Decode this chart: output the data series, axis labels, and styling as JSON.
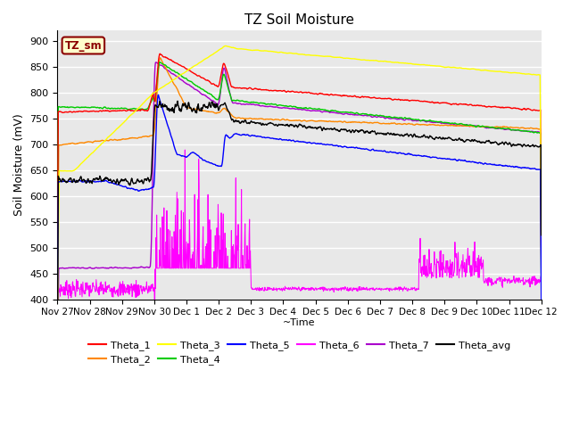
{
  "title": "TZ Soil Moisture",
  "xlabel": "~Time",
  "ylabel": "Soil Moisture (mV)",
  "ylim": [
    400,
    920
  ],
  "yticks": [
    400,
    450,
    500,
    550,
    600,
    650,
    700,
    750,
    800,
    850,
    900
  ],
  "colors": {
    "Theta_1": "#ff0000",
    "Theta_2": "#ff8800",
    "Theta_3": "#ffff00",
    "Theta_4": "#00cc00",
    "Theta_5": "#0000ff",
    "Theta_6": "#ff00ff",
    "Theta_7": "#aa00cc",
    "Theta_avg": "#000000"
  },
  "bg_color": "#e8e8e8",
  "n_points": 1200,
  "x_start": 0,
  "x_end": 15,
  "xtick_labels": [
    "Nov 27",
    "Nov 28",
    "Nov 29",
    "Nov 30",
    "Dec 1",
    "Dec 2",
    "Dec 3",
    "Dec 4",
    "Dec 5",
    "Dec 6",
    "Dec 7",
    "Dec 8",
    "Dec 9",
    "Dec 10",
    "Dec 11",
    "Dec 12"
  ],
  "xtick_positions": [
    0,
    1,
    2,
    3,
    4,
    5,
    6,
    7,
    8,
    9,
    10,
    11,
    12,
    13,
    14,
    15
  ]
}
